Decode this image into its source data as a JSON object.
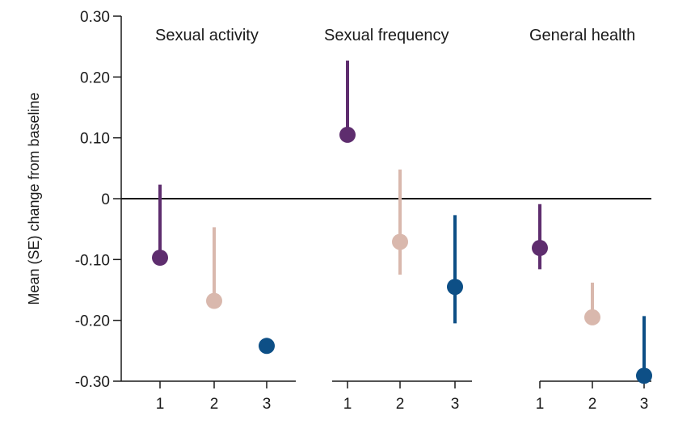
{
  "chart_data": {
    "type": "scatter",
    "ylabel": "Mean (SE) change from baseline",
    "ylim": [
      -0.3,
      0.3
    ],
    "yticks": [
      {
        "value": 0.3,
        "label": "0.30"
      },
      {
        "value": 0.2,
        "label": "0.20"
      },
      {
        "value": 0.1,
        "label": "0.10"
      },
      {
        "value": 0,
        "label": "0"
      },
      {
        "value": -0.1,
        "label": "-0.10"
      },
      {
        "value": -0.2,
        "label": "-0.20"
      },
      {
        "value": -0.3,
        "label": "-0.30"
      }
    ],
    "grid": false,
    "reference_line": 0,
    "group_colors": {
      "1": "#5e2d6e",
      "2": "#d9b8ad",
      "3": "#0d4f86"
    },
    "panels": [
      {
        "title": "Sexual activity",
        "points": [
          {
            "group": "1",
            "mean": -0.097,
            "error_to": 0.023
          },
          {
            "group": "2",
            "mean": -0.168,
            "error_to": -0.047
          },
          {
            "group": "3",
            "mean": -0.242,
            "error_to": null
          }
        ]
      },
      {
        "title": "Sexual frequency",
        "points": [
          {
            "group": "1",
            "mean": 0.105,
            "error_to": 0.227
          },
          {
            "group": "2",
            "mean": -0.071,
            "error_to": 0.048,
            "error_from": -0.125
          },
          {
            "group": "3",
            "mean": -0.145,
            "error_to": -0.027,
            "error_from": -0.205
          }
        ]
      },
      {
        "title": "General health",
        "points": [
          {
            "group": "1",
            "mean": -0.081,
            "error_to": -0.009,
            "error_from": -0.116
          },
          {
            "group": "2",
            "mean": -0.195,
            "error_to": -0.138
          },
          {
            "group": "3",
            "mean": -0.291,
            "error_to": -0.193
          }
        ]
      }
    ]
  }
}
